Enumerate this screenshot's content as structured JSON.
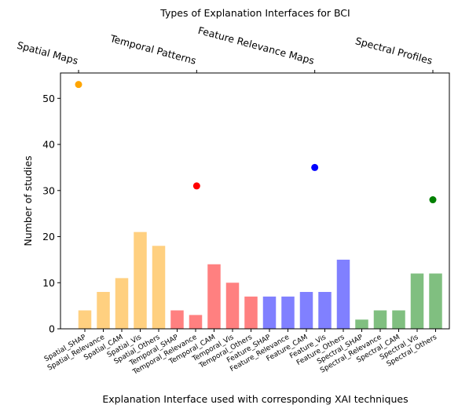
{
  "chart_data": {
    "type": "bar",
    "title": "Types of Explanation Interfaces for BCI",
    "xlabel": "Explanation Interface used with corresponding XAI techniques",
    "ylabel": "Number of studies",
    "ylim": [
      0,
      55.5
    ],
    "yticks": [
      0,
      10,
      20,
      30,
      40,
      50
    ],
    "categories": [
      "Spatial_SHAP",
      "Spatial_Relevance",
      "Spatial_CAM",
      "Spatial_Vis",
      "Spatial_Others",
      "Temporal_SHAP",
      "Temporal_Relevance",
      "Temporal_CAM",
      "Temporal_Vis",
      "Temporal_Others",
      "Feature_SHAP",
      "Feature_Relevance",
      "Feature_CAM",
      "Feature_Vis",
      "Feature_Others",
      "Spectral_SHAP",
      "Spectral_Relevance",
      "Spectral_CAM",
      "Spectral_Vis",
      "Spectral_Others"
    ],
    "values": [
      4,
      8,
      11,
      21,
      18,
      4,
      3,
      14,
      10,
      7,
      7,
      7,
      8,
      8,
      15,
      2,
      4,
      4,
      12,
      12
    ],
    "bar_colors": [
      "#ffd080",
      "#ffd080",
      "#ffd080",
      "#ffd080",
      "#ffd080",
      "#ff8080",
      "#ff8080",
      "#ff8080",
      "#ff8080",
      "#ff8080",
      "#8080ff",
      "#8080ff",
      "#8080ff",
      "#8080ff",
      "#8080ff",
      "#80bf80",
      "#80bf80",
      "#80bf80",
      "#80bf80",
      "#80bf80"
    ],
    "group_totals": [
      {
        "name": "Spatial Maps",
        "value": 53,
        "color": "#ffa500"
      },
      {
        "name": "Temporal Patterns",
        "value": 31,
        "color": "#ff0000"
      },
      {
        "name": "Feature Relevance Maps",
        "value": 35,
        "color": "#0000ff"
      },
      {
        "name": "Spectral Profiles",
        "value": 28,
        "color": "#008000"
      }
    ],
    "secondary_axis": "top",
    "grid": false
  }
}
